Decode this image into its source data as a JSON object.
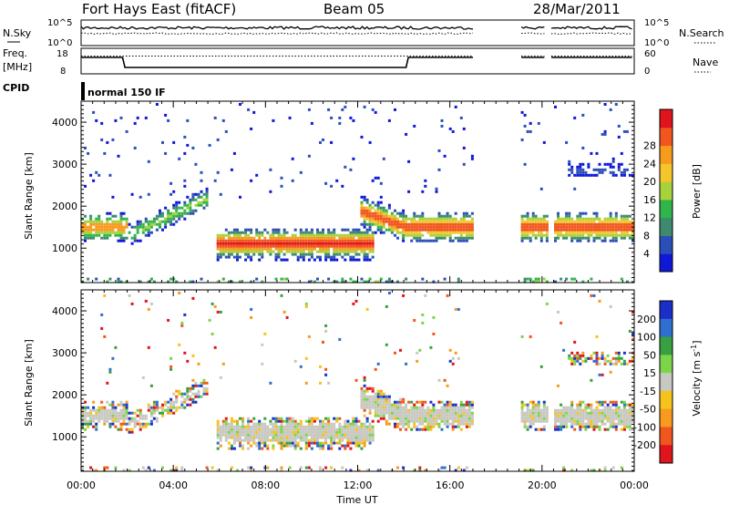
{
  "header": {
    "station": "Fort Hays East (fitACF)",
    "beam": "Beam 05",
    "date": "28/Mar/2011"
  },
  "top_panel": {
    "nsky_label": "N.Sky",
    "nsky_ticks": [
      "10^5",
      "10^0"
    ],
    "nsearch_label": "N.Search",
    "freq_label_1": "Freq.",
    "freq_label_2": "[MHz]",
    "freq_ticks": [
      "18",
      "8"
    ],
    "nave_label": "Nave",
    "nave_ticks": [
      "60",
      "0"
    ],
    "cpid_label": "CPID",
    "cpid_value": "normal 150 IF"
  },
  "chart_data": [
    {
      "type": "heatmap",
      "title": "",
      "xlabel": "Time UT",
      "ylabel": "Slant Range [km]",
      "x_ticks": [
        "00:00",
        "04:00",
        "08:00",
        "12:00",
        "16:00",
        "20:00",
        "00:00"
      ],
      "xlim_hours": [
        0,
        24
      ],
      "ylim_km": [
        180,
        4500
      ],
      "y_ticks": [
        "1000",
        "2000",
        "3000",
        "4000"
      ],
      "colorbar_label": "Power [dB]",
      "colorbar_ticks": [
        "4",
        "8",
        "12",
        "16",
        "20",
        "24",
        "28"
      ],
      "colorbar_colors": [
        "#0f18d8",
        "#2b4fb8",
        "#3f8a6e",
        "#2fb54a",
        "#a8d23c",
        "#f4c62c",
        "#f79a1e",
        "#f0561d",
        "#e0141c"
      ],
      "data_gaps_hours": [
        [
          17.0,
          19.0
        ],
        [
          20.2,
          20.4
        ]
      ],
      "features": [
        {
          "start_h": 0.0,
          "end_h": 2.0,
          "range_km": 1500,
          "peak_db": 24
        },
        {
          "start_h": 2.0,
          "end_h": 5.5,
          "range_km": 1600,
          "peak_db": 16
        },
        {
          "start_h": 5.8,
          "end_h": 12.6,
          "range_km": 1100,
          "peak_db": 30
        },
        {
          "start_h": 12.0,
          "end_h": 17.0,
          "range_km": 1500,
          "peak_db": 28
        },
        {
          "start_h": 19.0,
          "end_h": 24.0,
          "range_km": 1500,
          "peak_db": 28
        },
        {
          "start_h": 21.0,
          "end_h": 24.0,
          "range_km": 2850,
          "peak_db": 6
        }
      ]
    },
    {
      "type": "heatmap",
      "title": "",
      "xlabel": "Time UT",
      "ylabel": "Slant Range [km]",
      "x_ticks": [
        "00:00",
        "04:00",
        "08:00",
        "12:00",
        "16:00",
        "20:00",
        "00:00"
      ],
      "xlim_hours": [
        0,
        24
      ],
      "ylim_km": [
        180,
        4500
      ],
      "y_ticks": [
        "1000",
        "2000",
        "3000",
        "4000"
      ],
      "colorbar_label": "Velocity [m s",
      "colorbar_label_sup": "-1",
      "colorbar_label_end": "]",
      "colorbar_ticks": [
        "200",
        "100",
        "50",
        "15",
        "-15",
        "-50",
        "-100",
        "-200"
      ],
      "colorbar_colors": [
        "#1a2fc8",
        "#2e6fd0",
        "#38a040",
        "#7cd44a",
        "#c8c8c0",
        "#f6c21c",
        "#f79a1e",
        "#f0561d",
        "#e0141c"
      ],
      "data_gaps_hours": [
        [
          17.0,
          19.0
        ],
        [
          20.2,
          20.4
        ]
      ]
    }
  ]
}
